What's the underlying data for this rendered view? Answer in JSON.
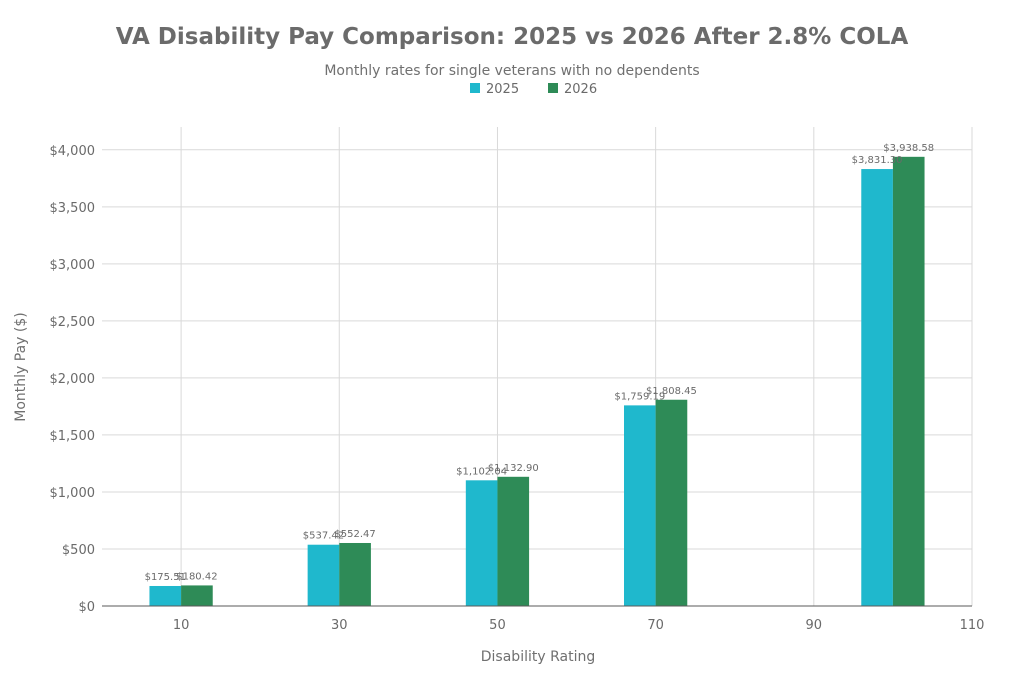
{
  "chart_data": {
    "type": "bar",
    "title": "VA Disability Pay Comparison: 2025 vs 2026 After 2.8% COLA",
    "subtitle": "Monthly rates for single veterans with no dependents",
    "xlabel": "Disability Rating",
    "ylabel": "Monthly Pay ($)",
    "x_ticks": [
      10,
      30,
      50,
      70,
      90,
      110
    ],
    "y_ticks": [
      0,
      500,
      1000,
      1500,
      2000,
      2500,
      3000,
      3500,
      4000
    ],
    "y_tick_labels": [
      "$0",
      "$500",
      "$1,000",
      "$1,500",
      "$2,000",
      "$2,500",
      "$3,000",
      "$3,500",
      "$4,000"
    ],
    "xlim": [
      0,
      110
    ],
    "ylim": [
      0,
      4200
    ],
    "grid": true,
    "legend_position": "top-center",
    "categories": [
      10,
      30,
      50,
      70,
      100
    ],
    "series": [
      {
        "name": "2025",
        "color": "#1fb8cd",
        "values": [
          175.51,
          537.42,
          1102.04,
          1759.19,
          3831.3
        ],
        "labels": [
          "$175.51",
          "$537.42",
          "$1,102.04",
          "$1,759.19",
          "$3,831.30"
        ]
      },
      {
        "name": "2026",
        "color": "#2e8b57",
        "values": [
          180.42,
          552.47,
          1132.9,
          1808.45,
          3938.58
        ],
        "labels": [
          "$180.42",
          "$552.47",
          "$1,132.90",
          "$1,808.45",
          "$3,938.58"
        ]
      }
    ]
  }
}
